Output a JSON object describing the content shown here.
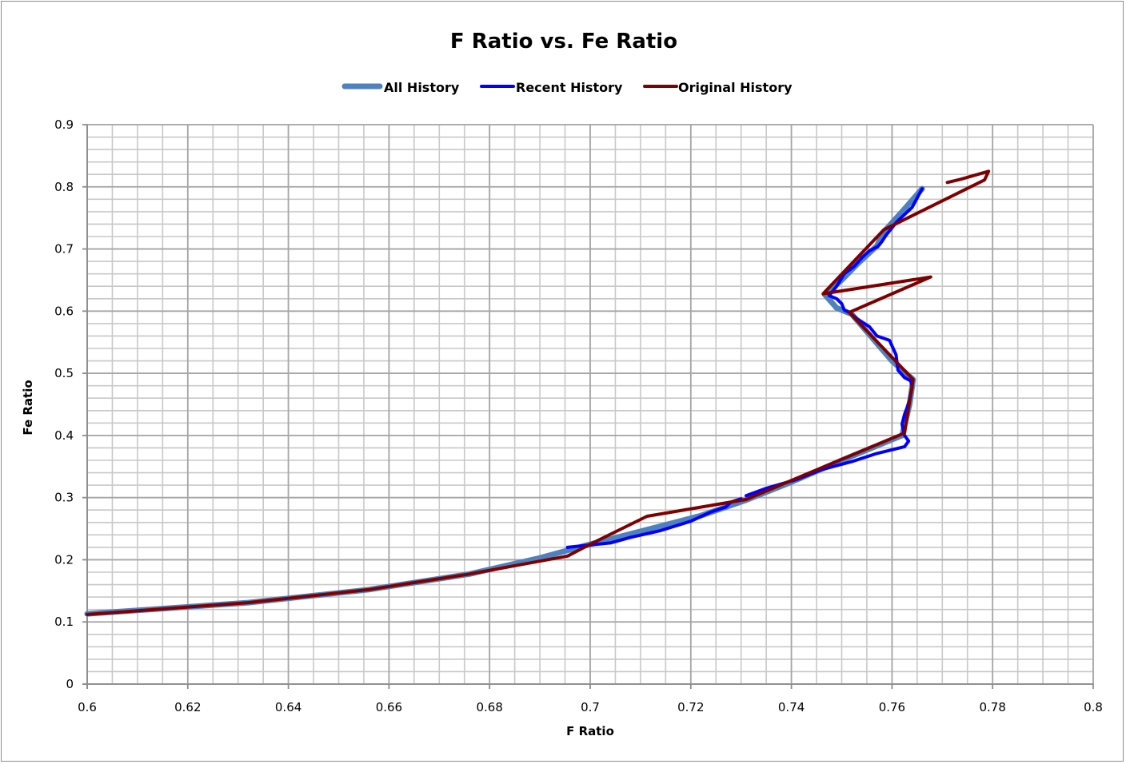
{
  "chart_data": {
    "type": "line",
    "title": "F Ratio vs. Fe Ratio",
    "xlabel": "F Ratio",
    "ylabel": "Fe Ratio",
    "xlim": [
      0.6,
      0.8
    ],
    "ylim": [
      0,
      0.9
    ],
    "x_ticks": [
      "0.6",
      "0.62",
      "0.64",
      "0.66",
      "0.68",
      "0.7",
      "0.72",
      "0.74",
      "0.76",
      "0.78",
      "0.8"
    ],
    "y_ticks": [
      "0",
      "0.1",
      "0.2",
      "0.3",
      "0.4",
      "0.5",
      "0.6",
      "0.7",
      "0.8",
      "0.9"
    ],
    "x_major_step": 0.02,
    "x_minor_step": 0.005,
    "y_major_step": 0.1,
    "y_minor_step": 0.02,
    "grid": true,
    "legend_position": "top",
    "series": [
      {
        "name": "All History",
        "color": "#4f81bd",
        "width": 7,
        "segments": [
          [
            [
              0.6,
              0.113
            ],
            [
              0.632,
              0.131
            ],
            [
              0.656,
              0.152
            ],
            [
              0.676,
              0.177
            ],
            [
              0.69,
              0.203
            ],
            [
              0.7,
              0.225
            ],
            [
              0.712,
              0.25
            ],
            [
              0.722,
              0.271
            ],
            [
              0.731,
              0.296
            ],
            [
              0.74,
              0.325
            ],
            [
              0.75,
              0.36
            ],
            [
              0.762,
              0.4
            ],
            [
              0.7635,
              0.45
            ],
            [
              0.7642,
              0.49
            ],
            [
              0.76,
              0.52
            ],
            [
              0.752,
              0.595
            ],
            [
              0.749,
              0.605
            ],
            [
              0.7466,
              0.627
            ],
            [
              0.75,
              0.65
            ],
            [
              0.753,
              0.675
            ],
            [
              0.757,
              0.705
            ],
            [
              0.7584,
              0.728
            ],
            [
              0.762,
              0.76
            ],
            [
              0.766,
              0.797
            ]
          ]
        ]
      },
      {
        "name": "Recent History",
        "color": "#0000ff",
        "width": 4,
        "segments": [
          [
            [
              0.6955,
              0.22
            ],
            [
              0.704,
              0.227
            ],
            [
              0.708,
              0.236
            ],
            [
              0.714,
              0.247
            ],
            [
              0.72,
              0.262
            ],
            [
              0.724,
              0.277
            ],
            [
              0.727,
              0.285
            ],
            [
              0.728,
              0.293
            ],
            [
              0.73,
              0.298
            ]
          ],
          [
            [
              0.731,
              0.303
            ],
            [
              0.735,
              0.315
            ],
            [
              0.741,
              0.329
            ],
            [
              0.746,
              0.345
            ],
            [
              0.752,
              0.358
            ],
            [
              0.757,
              0.371
            ],
            [
              0.7625,
              0.382
            ],
            [
              0.7633,
              0.391
            ],
            [
              0.7625,
              0.4
            ],
            [
              0.762,
              0.418
            ],
            [
              0.7625,
              0.434
            ],
            [
              0.763,
              0.445
            ],
            [
              0.7635,
              0.458
            ],
            [
              0.764,
              0.478
            ],
            [
              0.7637,
              0.488
            ],
            [
              0.7625,
              0.493
            ],
            [
              0.7612,
              0.505
            ],
            [
              0.7608,
              0.53
            ],
            [
              0.7595,
              0.553
            ],
            [
              0.757,
              0.56
            ],
            [
              0.7555,
              0.575
            ],
            [
              0.753,
              0.588
            ],
            [
              0.7515,
              0.598
            ],
            [
              0.7505,
              0.602
            ],
            [
              0.75,
              0.612
            ],
            [
              0.749,
              0.62
            ],
            [
              0.7475,
              0.625
            ],
            [
              0.749,
              0.64
            ],
            [
              0.7505,
              0.66
            ],
            [
              0.7525,
              0.672
            ],
            [
              0.754,
              0.686
            ],
            [
              0.7555,
              0.697
            ],
            [
              0.7572,
              0.704
            ],
            [
              0.758,
              0.712
            ],
            [
              0.7588,
              0.722
            ],
            [
              0.761,
              0.744
            ],
            [
              0.764,
              0.767
            ],
            [
              0.766,
              0.797
            ]
          ]
        ]
      },
      {
        "name": "Original History",
        "color": "#7f0000",
        "width": 4,
        "segments": [
          [
            [
              0.6,
              0.112
            ],
            [
              0.632,
              0.131
            ],
            [
              0.656,
              0.152
            ],
            [
              0.676,
              0.177
            ],
            [
              0.6955,
              0.206
            ],
            [
              0.7,
              0.225
            ],
            [
              0.7113,
              0.27
            ],
            [
              0.731,
              0.297
            ],
            [
              0.7625,
              0.404
            ],
            [
              0.7642,
              0.49
            ],
            [
              0.7515,
              0.598
            ],
            [
              0.7677,
              0.655
            ],
            [
              0.7463,
              0.628
            ],
            [
              0.7584,
              0.731
            ],
            [
              0.7784,
              0.811
            ],
            [
              0.7792,
              0.825
            ],
            [
              0.7736,
              0.812
            ],
            [
              0.771,
              0.807
            ]
          ]
        ]
      }
    ]
  },
  "legend": {
    "items": [
      {
        "label": "All History",
        "color": "#4f81bd",
        "width": 7
      },
      {
        "label": "Recent History",
        "color": "#0000ff",
        "width": 4
      },
      {
        "label": "Original History",
        "color": "#7f0000",
        "width": 4
      }
    ]
  },
  "colors": {
    "major_grid": "#a6a6a6",
    "minor_grid": "#c8c8c8",
    "axis": "#8c8c8c",
    "border": "#8c8c8c"
  }
}
